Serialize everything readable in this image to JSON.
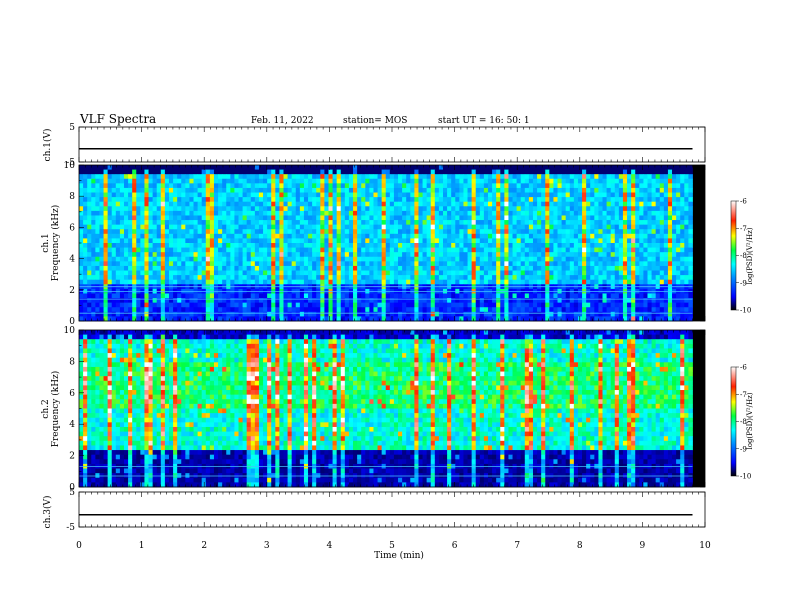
{
  "header": {
    "title": "VLF Spectra",
    "date": "Feb. 11, 2022",
    "station": "station= MOS",
    "start": "start  UT =   16: 50: 1"
  },
  "chart_data": [
    {
      "type": "line",
      "panel": "ch1-voltage",
      "ylabel": "ch.1(V)",
      "ylim": [
        -5,
        5
      ],
      "yticks": [
        "5",
        "-5"
      ],
      "series": [
        {
          "x": [
            0,
            9.8
          ],
          "y": [
            -1.2,
            -1.2
          ]
        }
      ]
    },
    {
      "type": "heatmap",
      "panel": "ch1-spectrogram",
      "ylabel_top": "ch.1",
      "ylabel": "Frequency (kHz)",
      "ylim": [
        0,
        10
      ],
      "yticks": [
        "0",
        "2",
        "4",
        "6",
        "8",
        "10"
      ],
      "xlim": [
        0,
        9.8
      ],
      "horizontal_lines_khz": [
        0.5,
        1.4,
        1.9,
        2.2
      ],
      "colorbar": {
        "label": "log(PSD)(V²/Hz)",
        "range": [
          -10,
          -6
        ],
        "ticks": [
          "-6",
          "-7",
          "-8",
          "-9",
          "-10"
        ]
      }
    },
    {
      "type": "heatmap",
      "panel": "ch2-spectrogram",
      "ylabel_top": "ch.2",
      "ylabel": "Frequency (kHz)",
      "ylim": [
        0,
        10
      ],
      "yticks": [
        "0",
        "2",
        "4",
        "6",
        "8",
        "10"
      ],
      "xlim": [
        0,
        9.8
      ],
      "horizontal_lines_khz": [
        0.7,
        1.3
      ],
      "colorbar": {
        "label": "log(PSD)(V²/Hz)",
        "range": [
          -10,
          -6
        ],
        "ticks": [
          "-6",
          "-7",
          "-8",
          "-9",
          "-10"
        ]
      }
    },
    {
      "type": "line",
      "panel": "ch3-voltage",
      "ylabel": "ch.3(V)",
      "ylim": [
        -5,
        5
      ],
      "yticks": [
        "5",
        "-5"
      ],
      "xlabel": "Time (min)",
      "xlim": [
        0,
        10
      ],
      "xticks": [
        "0",
        "1",
        "2",
        "3",
        "4",
        "5",
        "6",
        "7",
        "8",
        "9",
        "10"
      ],
      "series": [
        {
          "x": [
            0,
            9.8
          ],
          "y": [
            -1.5,
            -1.5
          ]
        }
      ]
    }
  ],
  "colors": {
    "colormap": [
      "#000080",
      "#0000ff",
      "#0080ff",
      "#00ffff",
      "#80ff80",
      "#ffff00",
      "#ff8000",
      "#ff0000",
      "#ffffff"
    ],
    "background": "#00003a"
  }
}
